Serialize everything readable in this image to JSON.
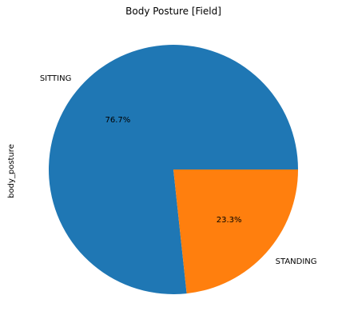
{
  "chart_data": {
    "type": "pie",
    "title": "Body Posture [Field]",
    "ylabel": "body_posture",
    "categories": [
      "SITTING",
      "STANDING"
    ],
    "values": [
      76.7,
      23.3
    ],
    "percent_labels": [
      "76.7%",
      "23.3%"
    ],
    "colors": [
      "#1f77b4",
      "#ff7f0e"
    ],
    "start_angle_deg": 0,
    "direction": "counterclockwise",
    "legend": "none"
  }
}
